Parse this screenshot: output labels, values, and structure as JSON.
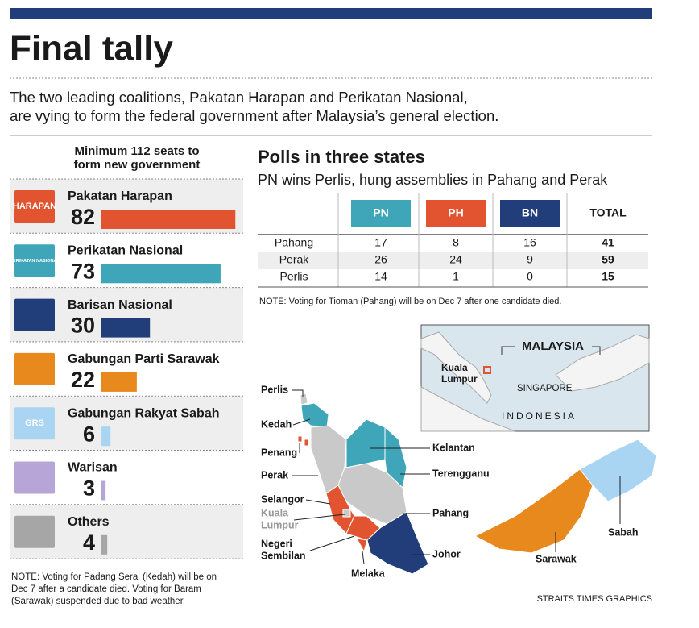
{
  "header": {
    "title": "Final tally",
    "subtitle": [
      "The two leading coalitions, Pakatan Harapan and Perikatan Nasional,",
      "are vying to form the federal government after Malaysia’s general election."
    ]
  },
  "seats": {
    "heading": [
      "Minimum 112 seats to",
      "form new government"
    ],
    "parties": [
      {
        "name": "Pakatan Harapan",
        "seats": 82,
        "color": "#e2542f",
        "logo": "HARAPAN"
      },
      {
        "name": "Perikatan Nasional",
        "seats": 73,
        "color": "#3ea6b8",
        "logo": "PERIKATAN NASIONAL"
      },
      {
        "name": "Barisan Nasional",
        "seats": 30,
        "color": "#213e7b"
      },
      {
        "name": "Gabungan Parti Sarawak",
        "seats": 22,
        "color": "#e8891e"
      },
      {
        "name": "Gabungan Rakyat Sabah",
        "seats": 6,
        "color": "#a9d4f2",
        "logo": "GRS"
      },
      {
        "name": "Warisan",
        "seats": 3,
        "color": "#b8a5d8"
      },
      {
        "name": "Others",
        "seats": 4,
        "color": "#a6a6a6"
      }
    ],
    "note": [
      "NOTE: Voting for Padang Serai (Kedah) will be on",
      "Dec 7 after a candidate died. Voting for Baram",
      "(Sarawak) suspended due to bad weather."
    ]
  },
  "states": {
    "title": "Polls in three states",
    "subtitle": "PN wins Perlis, hung assemblies in Pahang and Perak",
    "columns": [
      {
        "label": "PN",
        "color": "#3ea6b8"
      },
      {
        "label": "PH",
        "color": "#e2542f"
      },
      {
        "label": "BN",
        "color": "#213e7b"
      },
      {
        "label": "TOTAL"
      }
    ],
    "rows": [
      {
        "state": "Pahang",
        "values": [
          17,
          8,
          16,
          41
        ]
      },
      {
        "state": "Perak",
        "values": [
          26,
          24,
          9,
          59
        ]
      },
      {
        "state": "Perlis",
        "values": [
          14,
          1,
          0,
          15
        ]
      }
    ],
    "note": "NOTE: Voting for Tioman (Pahang) will be on Dec 7 after one candidate died."
  },
  "map": {
    "labels": [
      [
        "Perlis"
      ],
      [
        "Kedah"
      ],
      [
        "Penang"
      ],
      [
        "Perak"
      ],
      [
        "Selangor"
      ],
      [
        "Kuala",
        "Lumpur"
      ],
      [
        "Negeri",
        "Sembilan"
      ],
      [
        "Melaka"
      ],
      [
        "Kelantan"
      ],
      [
        "Terengganu"
      ],
      [
        "Pahang"
      ],
      [
        "Johor"
      ],
      [
        "Sabah"
      ],
      [
        "Sarawak"
      ]
    ],
    "inset": {
      "country": "MALAYSIA",
      "capital": [
        "Kuala",
        "Lumpur"
      ],
      "singapore": "SINGAPORE",
      "indonesia": "INDONESIA"
    }
  },
  "credit": "STRAITS TIMES GRAPHICS"
}
